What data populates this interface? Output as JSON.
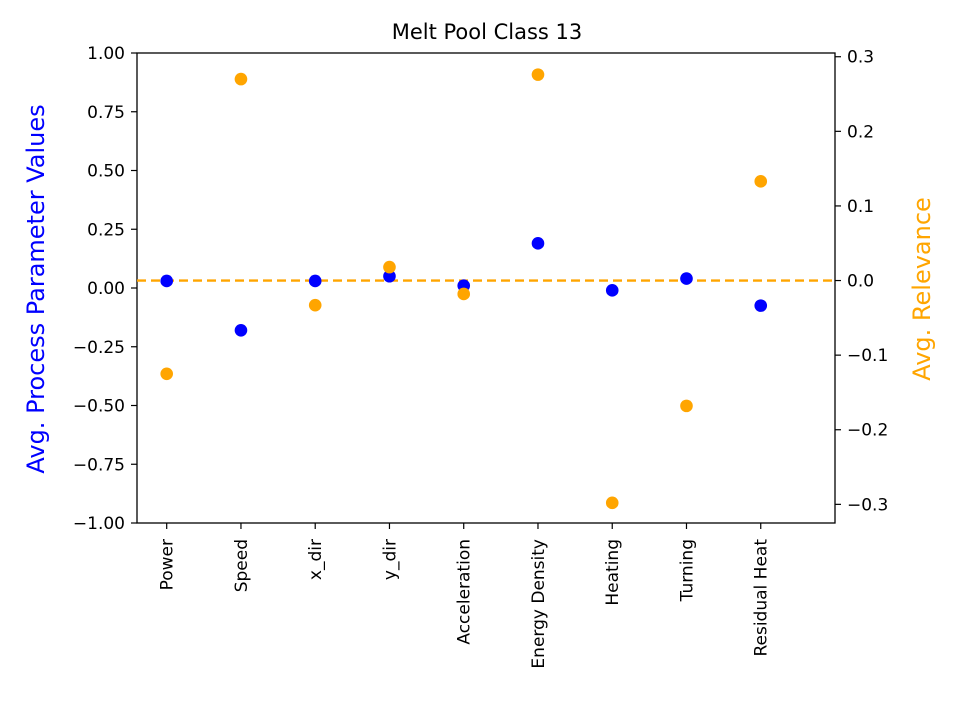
{
  "chart_data": {
    "type": "scatter",
    "title": "Melt Pool Class 13",
    "categories": [
      "Power",
      "Speed",
      "x_dir",
      "y_dir",
      "Acceleration",
      "Energy Density",
      "Heating",
      "Turning",
      "Residual Heat"
    ],
    "left_axis": {
      "label": "Avg. Process Parameter Values",
      "color": "#0000ff",
      "ylim": [
        -1.0,
        1.0
      ],
      "ticks": [
        -1.0,
        -0.75,
        -0.5,
        -0.25,
        0.0,
        0.25,
        0.5,
        0.75,
        1.0
      ],
      "tick_labels": [
        "−1.00",
        "−0.75",
        "−0.50",
        "−0.25",
        "0.00",
        "0.25",
        "0.50",
        "0.75",
        "1.00"
      ]
    },
    "right_axis": {
      "label": "Avg. Relevance",
      "color": "#ffa500",
      "ylim": [
        -0.325,
        0.305
      ],
      "ticks": [
        -0.3,
        -0.2,
        -0.1,
        0.0,
        0.1,
        0.2,
        0.3
      ],
      "tick_labels": [
        "−0.3",
        "−0.2",
        "−0.1",
        "0.0",
        "0.1",
        "0.2",
        "0.3"
      ]
    },
    "series": [
      {
        "axis": "left",
        "color": "#0000ff",
        "values": [
          0.03,
          -0.18,
          0.03,
          0.05,
          0.01,
          0.19,
          -0.01,
          0.04,
          -0.075
        ]
      },
      {
        "axis": "right",
        "color": "#ffa500",
        "values": [
          -0.125,
          0.27,
          -0.033,
          0.018,
          -0.018,
          0.276,
          -0.298,
          -0.168,
          0.133
        ]
      }
    ],
    "reference_line": {
      "axis": "right",
      "value": 0.0,
      "color": "#ffa500",
      "style": "dashed"
    },
    "grid": false
  }
}
